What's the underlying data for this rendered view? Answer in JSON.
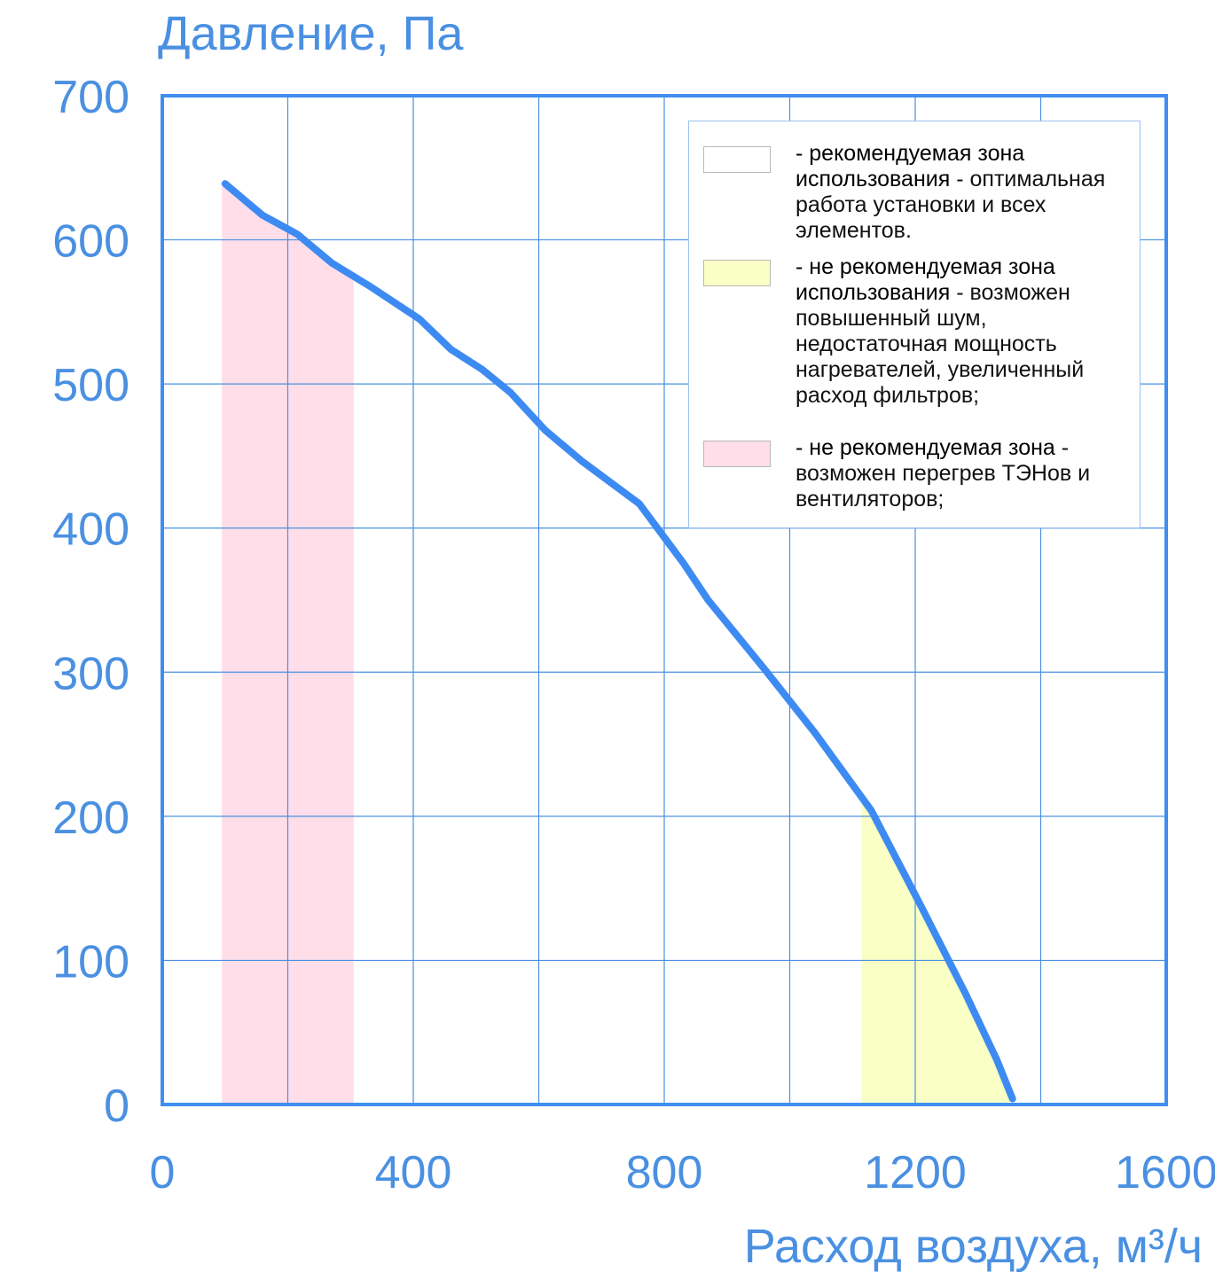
{
  "colors": {
    "axis": "#3f8ef0",
    "grid": "#4a90e2",
    "curve": "#3d8bf2",
    "label": "#4a90e2",
    "zone_recommended": "#ffffff",
    "zone_not_recommended_high_flow": "#f9ffc5",
    "zone_not_recommended_low_flow": "#ffdde9"
  },
  "chart_data": {
    "type": "line",
    "xlabel": "Расход воздуха, м³/ч",
    "ylabel": "Давление, Па",
    "xlim": [
      0,
      1600
    ],
    "ylim": [
      0,
      700
    ],
    "x_ticks": [
      0,
      400,
      800,
      1200,
      1600
    ],
    "x_tick_labels": [
      "0",
      "400",
      "800",
      "1200",
      "1600"
    ],
    "y_ticks": [
      0,
      100,
      200,
      300,
      400,
      500,
      600,
      700
    ],
    "y_tick_labels": [
      "0",
      "100",
      "200",
      "300",
      "400",
      "500",
      "600",
      "700"
    ],
    "x_gridlines": [
      0,
      200,
      400,
      600,
      800,
      1000,
      1200,
      1400,
      1600
    ],
    "y_gridlines": [
      0,
      100,
      200,
      300,
      400,
      500,
      600,
      700
    ],
    "grid": true,
    "series": [
      {
        "x": [
          100,
          160,
          215,
          270,
          330,
          410,
          460,
          510,
          555,
          610,
          670,
          760,
          830,
          870,
          960,
          1040,
          1130,
          1210,
          1280,
          1330,
          1355
        ],
        "y": [
          639,
          617,
          604,
          584,
          568,
          545,
          524,
          510,
          494,
          468,
          446,
          417,
          376,
          350,
          302,
          258,
          204,
          137,
          77,
          31,
          4
        ]
      }
    ],
    "zones": [
      {
        "x_start": 95,
        "x_end": 305,
        "color": "#ffdde9",
        "meaning": "low_flow"
      },
      {
        "x_start": 1115,
        "x_end": 1355,
        "color": "#f9ffc5",
        "meaning": "high_flow"
      }
    ],
    "legend": {
      "position": "top-right",
      "items": [
        {
          "swatch": "#ffffff",
          "bold": "- рекомендуемая зона использования",
          "rest": " - оптимальная работа установки и всех элементов."
        },
        {
          "swatch": "#f9ffc5",
          "bold": "- не рекомендуемая зона использования",
          "rest": " - возможен повышенный шум, недостаточная мощность нагревателей, увеличенный расход фильтров;"
        },
        {
          "swatch": "#ffdde9",
          "bold": "- не рекомендуемая зона",
          "rest": " - возможен перегрев ТЭНов и вентиляторов;"
        }
      ]
    }
  }
}
